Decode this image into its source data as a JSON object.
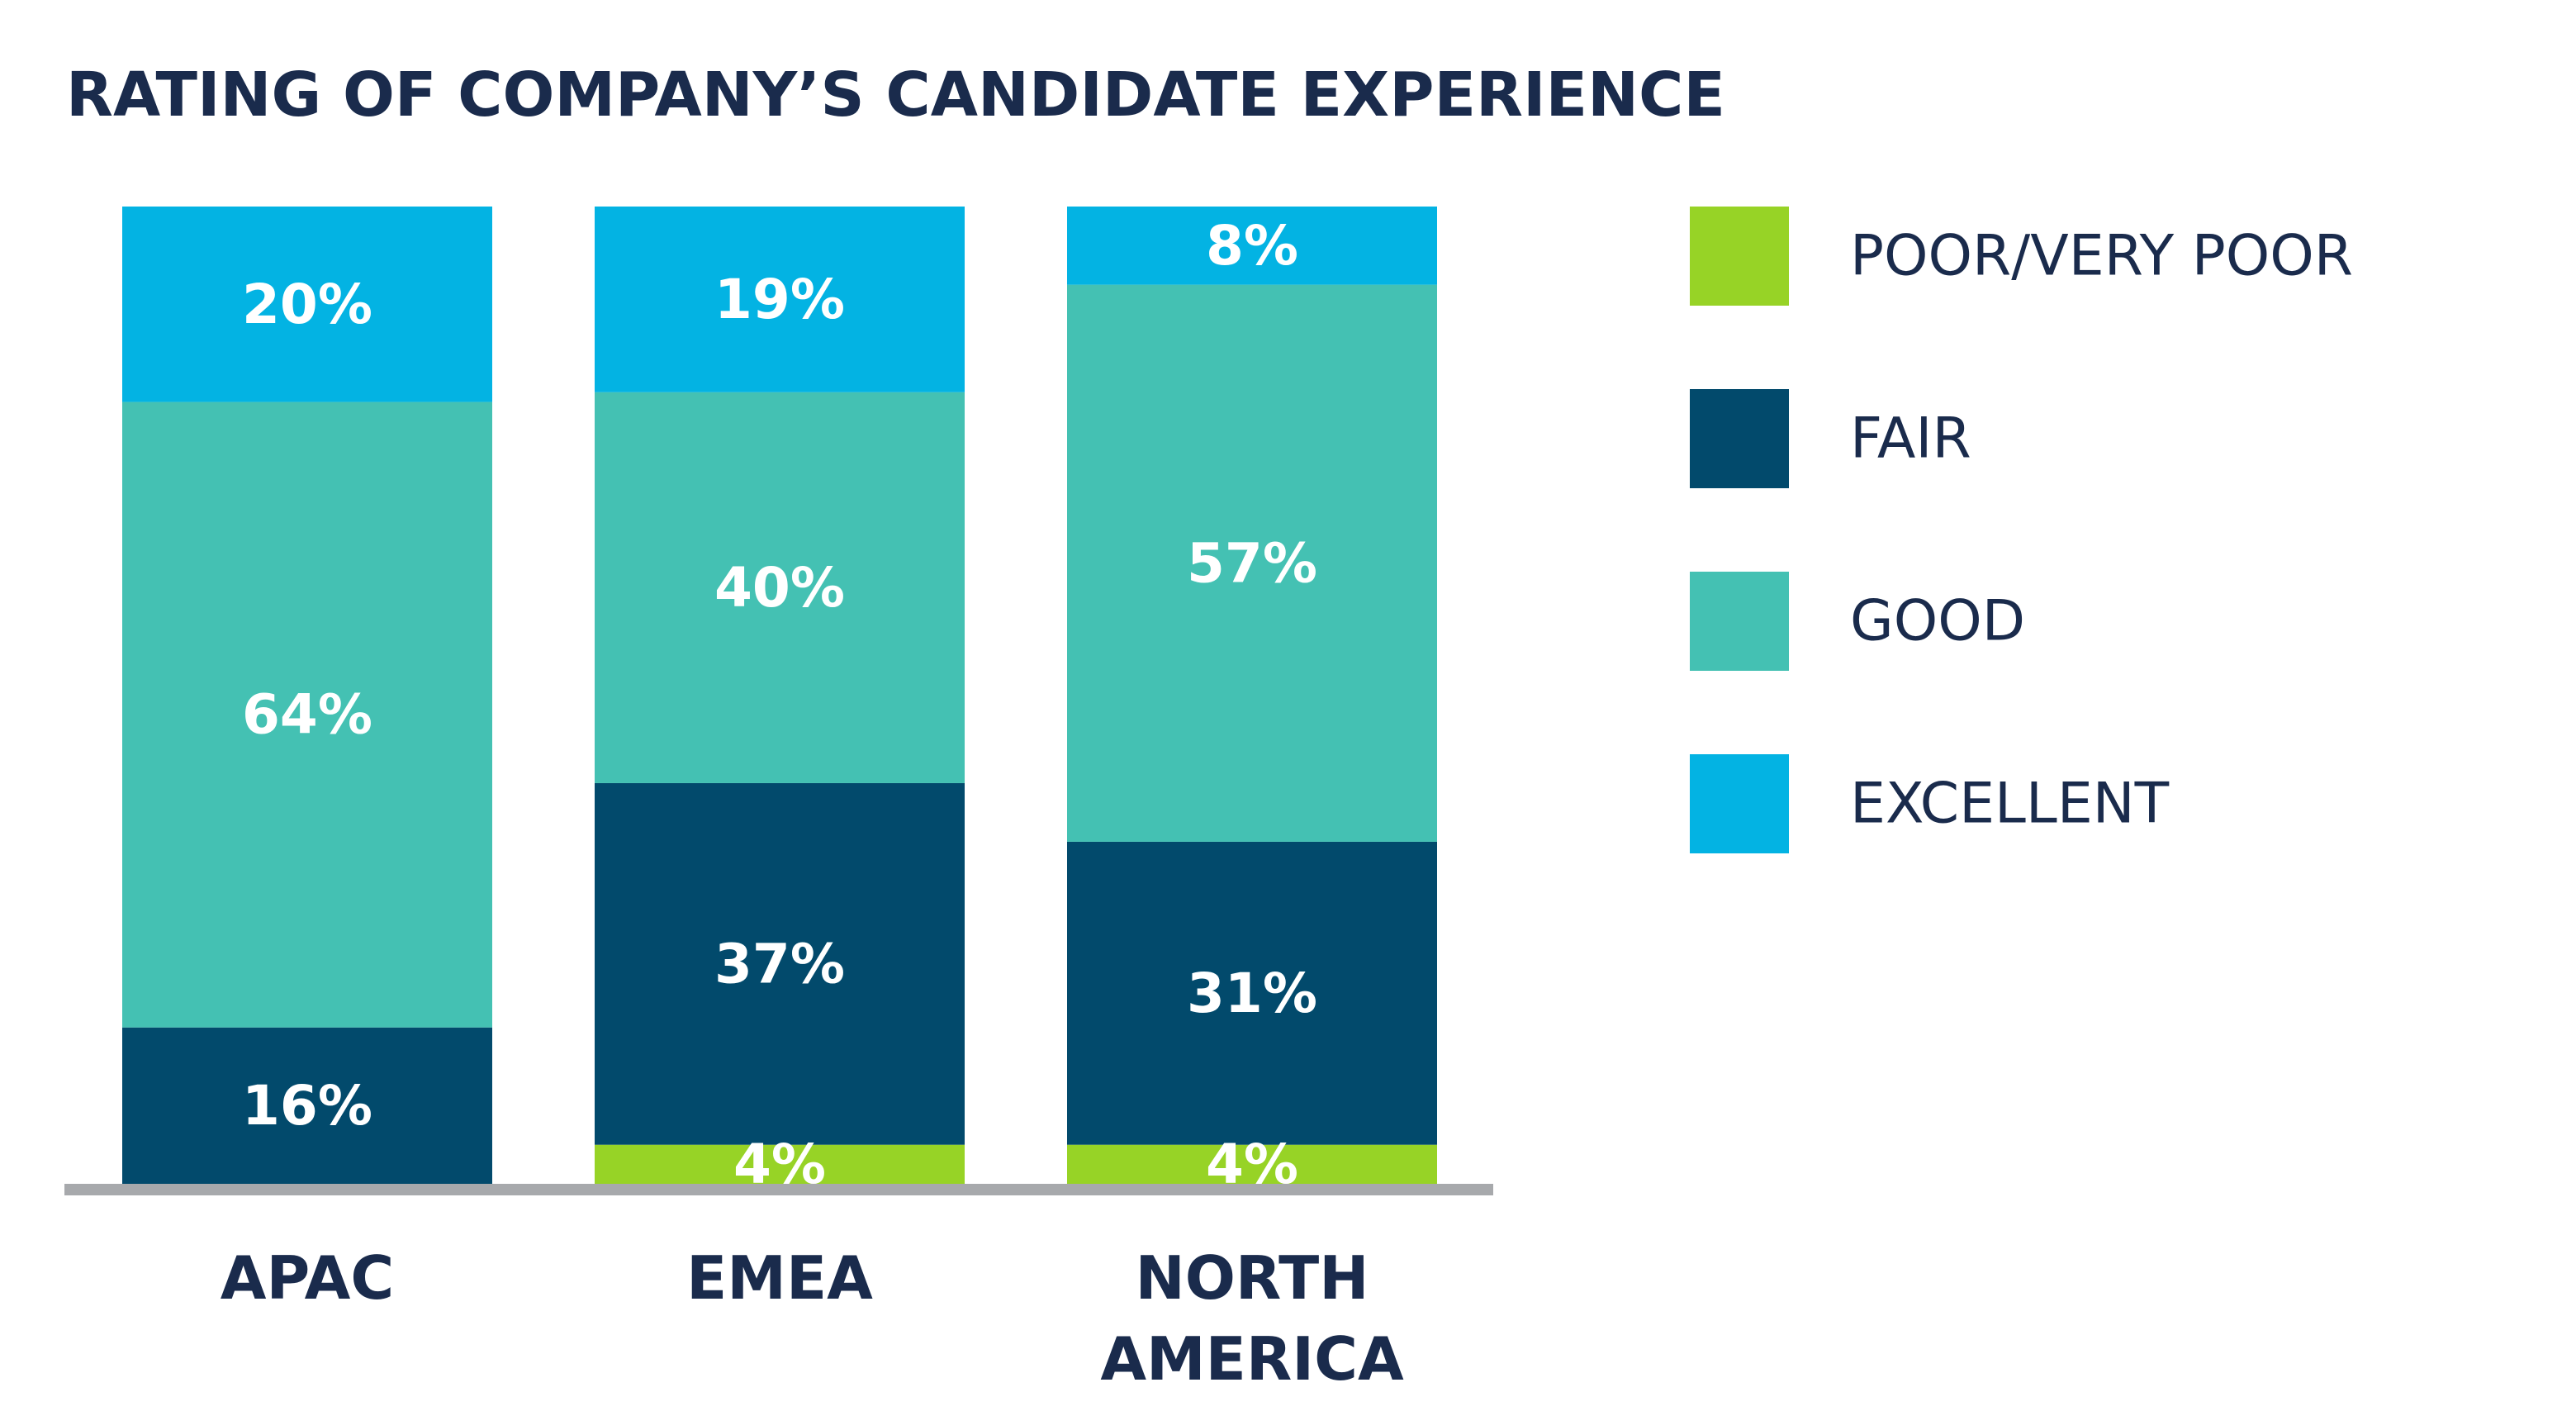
{
  "chart_data": {
    "type": "bar",
    "stacked": true,
    "title": "RATING OF COMPANY’S CANDIDATE EXPERIENCE",
    "categories": [
      [
        "APAC"
      ],
      [
        "EMEA"
      ],
      [
        "NORTH",
        "AMERICA"
      ]
    ],
    "series": [
      {
        "name": "POOR/VERY POOR",
        "color": "#97d326",
        "values": [
          0,
          4,
          4
        ],
        "labels": [
          "",
          "4%",
          "4%"
        ]
      },
      {
        "name": "FAIR",
        "color": "#024a6c",
        "values": [
          16,
          37,
          31
        ],
        "labels": [
          "16%",
          "37%",
          "31%"
        ]
      },
      {
        "name": "GOOD",
        "color": "#44c1b3",
        "values": [
          64,
          40,
          57
        ],
        "labels": [
          "64%",
          "40%",
          "57%"
        ]
      },
      {
        "name": "EXCELLENT",
        "color": "#03b3e3",
        "values": [
          20,
          19,
          8
        ],
        "labels": [
          "20%",
          "19%",
          "8%"
        ]
      }
    ],
    "legend_position": "right",
    "ylim": [
      0,
      100
    ],
    "axis_color": "#a7a9ac",
    "grid": false
  }
}
